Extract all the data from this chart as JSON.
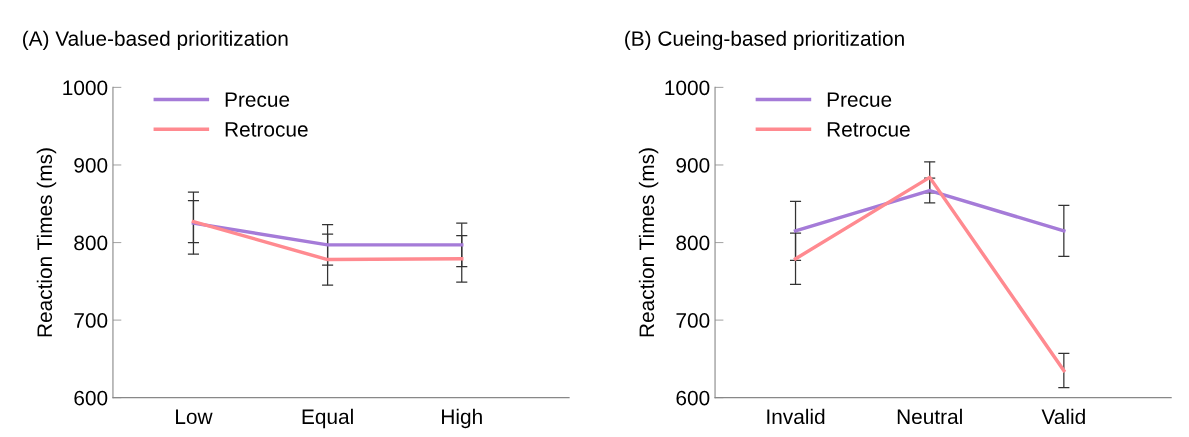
{
  "chart_data": [
    {
      "type": "line",
      "title": "(A) Value-based prioritization",
      "ylabel": "Reaction Times (ms)",
      "categories": [
        "Low",
        "Equal",
        "High"
      ],
      "ylim": [
        600,
        1000
      ],
      "yticks": [
        600,
        700,
        800,
        900,
        1000
      ],
      "legend": "top left",
      "grid": false,
      "series": [
        {
          "name": "Precue",
          "color": "#a57bd8",
          "values": [
            825,
            797,
            797
          ],
          "errors": [
            40,
            26,
            28
          ]
        },
        {
          "name": "Retrocue",
          "color": "#ff8a90",
          "values": [
            827,
            778,
            779
          ],
          "errors": [
            27,
            33,
            30
          ]
        }
      ]
    },
    {
      "type": "line",
      "title": "(B) Cueing-based prioritization",
      "ylabel": "Reaction Times (ms)",
      "categories": [
        "Invalid",
        "Neutral",
        "Valid"
      ],
      "ylim": [
        600,
        1000
      ],
      "yticks": [
        600,
        700,
        800,
        900,
        1000
      ],
      "legend": "top left",
      "grid": false,
      "series": [
        {
          "name": "Precue",
          "color": "#a57bd8",
          "values": [
            815,
            867,
            815
          ],
          "errors": [
            38,
            16,
            33
          ]
        },
        {
          "name": "Retrocue",
          "color": "#ff8a90",
          "values": [
            779,
            884,
            635
          ],
          "errors": [
            33,
            20,
            22
          ]
        }
      ]
    }
  ]
}
